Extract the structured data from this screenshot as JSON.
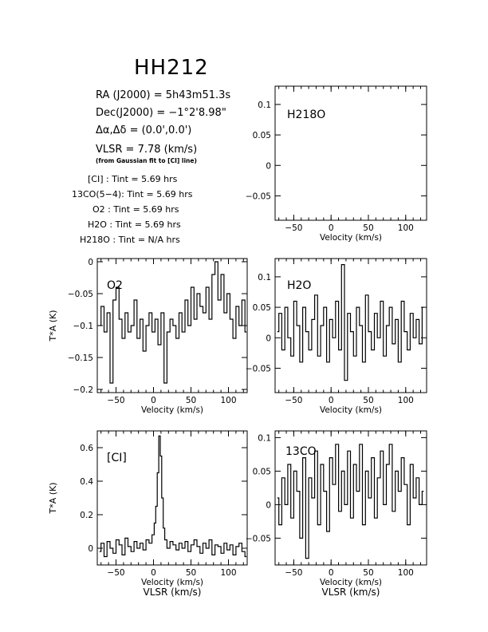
{
  "header": {
    "title": "HH212",
    "ra": "RA (J2000) = 5h43m51.3s",
    "dec": "Dec(J2000) = −1°2'8.98\"",
    "offset": "Δα,Δδ = (0.0',0.0')",
    "vlsr": "VLSR = 7.78 (km/s)",
    "vlsr_note": "(from Gaussian fit to [CI] line)"
  },
  "integrations": [
    {
      "species": "[CI]",
      "label": "[CI] : Tint = 5.69 hrs"
    },
    {
      "species": "13CO(5−4)",
      "label": "13CO(5−4): Tint = 5.69 hrs"
    },
    {
      "species": "O2",
      "label": "O2 : Tint = 5.69 hrs"
    },
    {
      "species": "H2O",
      "label": "H2O : Tint = 5.69 hrs"
    },
    {
      "species": "H218O",
      "label": "H218O : Tint = N/A hrs"
    }
  ],
  "chart_data": [
    {
      "id": "h218o",
      "type": "line",
      "label": "H218O",
      "xlabel": "Velocity (km/s)",
      "ylabel": "",
      "xlim": [
        -75,
        128
      ],
      "ylim": [
        -0.09,
        0.13
      ],
      "xticks": [
        -50,
        0,
        50,
        100
      ],
      "yticks": [
        -0.05,
        0,
        0.05,
        0.1
      ],
      "yticklabels": [
        "−0.05",
        "0",
        "0.05",
        "0.1"
      ],
      "series": []
    },
    {
      "id": "o2",
      "type": "line",
      "label": "O2",
      "xlabel": "Velocity (km/s)",
      "ylabel": "T*A (K)",
      "xlim": [
        -75,
        125
      ],
      "ylim": [
        -0.205,
        0.005
      ],
      "xticks": [
        -50,
        0,
        50,
        100
      ],
      "yticks": [
        -0.2,
        -0.15,
        -0.1,
        -0.05,
        0
      ],
      "yticklabels": [
        "−0.2",
        "−0.15",
        "−0.1",
        "−0.05",
        "0"
      ],
      "series": [
        {
          "x": [
            -72,
            -68,
            -64,
            -60,
            -56,
            -52,
            -48,
            -44,
            -40,
            -36,
            -32,
            -28,
            -24,
            -20,
            -16,
            -12,
            -8,
            -4,
            0,
            4,
            8,
            12,
            16,
            20,
            24,
            28,
            32,
            36,
            40,
            44,
            48,
            52,
            56,
            60,
            64,
            68,
            72,
            76,
            80,
            84,
            88,
            92,
            96,
            100,
            104,
            108,
            112,
            116,
            120,
            124
          ],
          "y": [
            -0.1,
            -0.07,
            -0.11,
            -0.08,
            -0.19,
            -0.06,
            -0.04,
            -0.09,
            -0.12,
            -0.08,
            -0.11,
            -0.1,
            -0.06,
            -0.12,
            -0.09,
            -0.14,
            -0.1,
            -0.08,
            -0.11,
            -0.09,
            -0.13,
            -0.08,
            -0.19,
            -0.11,
            -0.09,
            -0.1,
            -0.12,
            -0.08,
            -0.11,
            -0.06,
            -0.1,
            -0.04,
            -0.09,
            -0.05,
            -0.07,
            -0.08,
            -0.04,
            -0.09,
            -0.02,
            0.0,
            -0.06,
            -0.02,
            -0.08,
            -0.05,
            -0.09,
            -0.12,
            -0.07,
            -0.1,
            -0.06,
            -0.11
          ]
        }
      ]
    },
    {
      "id": "h2o",
      "type": "line",
      "label": "H2O",
      "xlabel": "Velocity (km/s)",
      "ylabel": "",
      "xlim": [
        -75,
        128
      ],
      "ylim": [
        -0.09,
        0.13
      ],
      "xticks": [
        -50,
        0,
        50,
        100
      ],
      "yticks": [
        -0.05,
        0,
        0.05,
        0.1
      ],
      "yticklabels": [
        "−0.05",
        "0",
        "0.05",
        "0.1"
      ],
      "series": [
        {
          "x": [
            -72,
            -68,
            -64,
            -60,
            -56,
            -52,
            -48,
            -44,
            -40,
            -36,
            -32,
            -28,
            -24,
            -20,
            -16,
            -12,
            -8,
            -4,
            0,
            4,
            8,
            12,
            16,
            20,
            24,
            28,
            32,
            36,
            40,
            44,
            48,
            52,
            56,
            60,
            64,
            68,
            72,
            76,
            80,
            84,
            88,
            92,
            96,
            100,
            104,
            108,
            112,
            116,
            120,
            124
          ],
          "y": [
            0.01,
            0.04,
            -0.02,
            0.05,
            0.0,
            -0.03,
            0.06,
            0.02,
            -0.04,
            0.05,
            0.01,
            -0.02,
            0.03,
            0.07,
            -0.03,
            0.02,
            0.05,
            -0.04,
            0.03,
            0.0,
            0.06,
            -0.02,
            0.12,
            -0.07,
            0.04,
            0.01,
            -0.03,
            0.05,
            0.02,
            -0.04,
            0.07,
            0.01,
            -0.02,
            0.04,
            0.0,
            0.06,
            -0.03,
            0.02,
            0.05,
            -0.01,
            0.03,
            -0.04,
            0.06,
            0.01,
            -0.02,
            0.04,
            0.0,
            0.03,
            -0.01,
            0.05
          ]
        }
      ]
    },
    {
      "id": "ci",
      "type": "line",
      "label": "[CI]",
      "xlabel": "Velocity (km/s)",
      "ylabel": "T*A (K)",
      "xlim": [
        -75,
        125
      ],
      "ylim": [
        -0.1,
        0.7
      ],
      "xticks": [
        -50,
        0,
        50,
        100
      ],
      "yticks": [
        0,
        0.2,
        0.4,
        0.6
      ],
      "yticklabels": [
        "0",
        "0.2",
        "0.4",
        "0.6"
      ],
      "series": [
        {
          "x": [
            -72,
            -68,
            -64,
            -60,
            -56,
            -52,
            -48,
            -44,
            -40,
            -36,
            -32,
            -28,
            -24,
            -20,
            -16,
            -12,
            -8,
            -4,
            0,
            2,
            4,
            6,
            8,
            10,
            12,
            14,
            16,
            20,
            24,
            28,
            32,
            36,
            40,
            44,
            48,
            52,
            56,
            60,
            64,
            68,
            72,
            76,
            80,
            84,
            88,
            92,
            96,
            100,
            104,
            108,
            112,
            116,
            120,
            124
          ],
          "y": [
            -0.02,
            0.03,
            -0.05,
            0.04,
            0.0,
            -0.03,
            0.05,
            0.02,
            -0.04,
            0.06,
            0.01,
            -0.02,
            0.04,
            0.0,
            0.03,
            -0.01,
            0.05,
            0.03,
            0.08,
            0.15,
            0.25,
            0.45,
            0.67,
            0.55,
            0.3,
            0.12,
            0.05,
            0.0,
            0.04,
            0.02,
            -0.01,
            0.03,
            0.0,
            0.04,
            -0.02,
            0.02,
            0.05,
            0.01,
            -0.03,
            0.03,
            0.0,
            0.05,
            -0.04,
            0.02,
            0.01,
            -0.03,
            0.03,
            -0.01,
            0.02,
            -0.04,
            0.01,
            0.03,
            -0.02,
            -0.05
          ]
        }
      ]
    },
    {
      "id": "co13",
      "type": "line",
      "label": "13CO",
      "xlabel": "Velocity (km/s)",
      "ylabel": "",
      "xlim": [
        -75,
        128
      ],
      "ylim": [
        -0.09,
        0.11
      ],
      "xticks": [
        -50,
        0,
        50,
        100
      ],
      "yticks": [
        -0.05,
        0,
        0.05,
        0.1
      ],
      "yticklabels": [
        "−0.05",
        "0",
        "0.05",
        "0.1"
      ],
      "series": [
        {
          "x": [
            -72,
            -68,
            -64,
            -60,
            -56,
            -52,
            -48,
            -44,
            -40,
            -36,
            -32,
            -28,
            -24,
            -20,
            -16,
            -12,
            -8,
            -4,
            0,
            4,
            8,
            12,
            16,
            20,
            24,
            28,
            32,
            36,
            40,
            44,
            48,
            52,
            56,
            60,
            64,
            68,
            72,
            76,
            80,
            84,
            88,
            92,
            96,
            100,
            104,
            108,
            112,
            116,
            120,
            124
          ],
          "y": [
            0.01,
            -0.03,
            0.04,
            0.0,
            0.06,
            -0.02,
            0.05,
            0.02,
            -0.05,
            0.07,
            -0.08,
            0.04,
            0.01,
            0.08,
            -0.03,
            0.06,
            0.02,
            -0.04,
            0.07,
            0.03,
            0.09,
            -0.01,
            0.05,
            0.0,
            0.08,
            -0.02,
            0.06,
            0.02,
            0.09,
            -0.03,
            0.05,
            0.01,
            0.07,
            -0.02,
            0.04,
            0.08,
            0.0,
            0.06,
            0.09,
            -0.01,
            0.05,
            0.02,
            0.07,
            0.03,
            -0.03,
            0.06,
            0.01,
            0.04,
            0.0,
            0.02
          ]
        }
      ]
    }
  ],
  "footer": {
    "left_xlabel": "VLSR (km/s)",
    "right_xlabel": "VLSR (km/s)"
  }
}
